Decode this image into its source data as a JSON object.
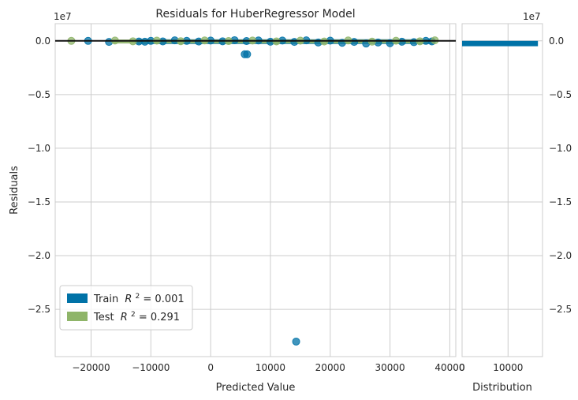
{
  "chart_data": [
    {
      "type": "scatter",
      "title": "Residuals for HuberRegressor Model",
      "xlabel": "Predicted Value",
      "ylabel": "Residuals",
      "xlim": [
        -26000,
        41000
      ],
      "ylim": [
        -29400000,
        1600000
      ],
      "y_offset_label": "1e7",
      "x_ticks": [
        -20000,
        -10000,
        0,
        10000,
        20000,
        30000,
        40000
      ],
      "x_tick_labels": [
        "−20000",
        "−10000",
        "0",
        "10000",
        "20000",
        "30000",
        "40000"
      ],
      "y_ticks": [
        0,
        -5000000,
        -10000000,
        -15000000,
        -20000000,
        -25000000
      ],
      "y_tick_labels": [
        "0.0",
        "−0.5",
        "−1.0",
        "−1.5",
        "−2.0",
        "−2.5"
      ],
      "grid": true,
      "reference_line_y": 0,
      "legend_position": "lower-left",
      "series": [
        {
          "name": "Train R² = 0.001",
          "legend_label": "Train",
          "legend_r2": " = 0.001",
          "color": "#0072a7",
          "x": [
            -20500,
            -17000,
            -12000,
            -11000,
            -10000,
            -8000,
            -6000,
            -4000,
            -2000,
            0,
            2000,
            4000,
            6000,
            8000,
            10000,
            12000,
            14000,
            16000,
            18000,
            20000,
            22000,
            24000,
            26000,
            28000,
            30000,
            32000,
            34000,
            36000,
            37000,
            5700,
            6100,
            14300
          ],
          "y": [
            0,
            -100000,
            -60000,
            -80000,
            0,
            -50000,
            50000,
            0,
            -60000,
            30000,
            -40000,
            60000,
            -20000,
            40000,
            -80000,
            30000,
            -100000,
            50000,
            -150000,
            20000,
            -180000,
            -100000,
            -250000,
            -150000,
            -220000,
            -80000,
            -120000,
            0,
            -50000,
            -1250000,
            -1250000,
            -28000000
          ]
        },
        {
          "name": "Test R² = 0.291",
          "legend_label": "Test",
          "legend_r2": " = 0.291",
          "color": "#8fb569",
          "x": [
            -23300,
            -16000,
            -13000,
            -9000,
            -5000,
            -1000,
            3000,
            7000,
            11000,
            15000,
            19000,
            23000,
            27000,
            31000,
            35000,
            37500
          ],
          "y": [
            0,
            30000,
            -40000,
            20000,
            -30000,
            40000,
            -20000,
            30000,
            -50000,
            20000,
            -60000,
            40000,
            -70000,
            10000,
            -40000,
            50000
          ]
        }
      ]
    },
    {
      "type": "bar",
      "orientation": "horizontal",
      "xlabel": "Distribution",
      "xlim": [
        0,
        17500
      ],
      "ylim": [
        -29400000,
        1600000
      ],
      "y_offset_label": "1e7",
      "x_ticks": [
        0,
        10000
      ],
      "x_tick_labels": [
        "0",
        "10000"
      ],
      "y_ticks": [
        0,
        -5000000,
        -10000000,
        -15000000,
        -20000000,
        -25000000
      ],
      "y_tick_labels": [
        "0.0",
        "−0.5",
        "−1.0",
        "−1.5",
        "−2.0",
        "−2.5"
      ],
      "grid": true,
      "bins": [
        {
          "y_top": 0,
          "y_bottom": -500000,
          "count": 16500,
          "color": "#0072a7"
        }
      ]
    }
  ]
}
